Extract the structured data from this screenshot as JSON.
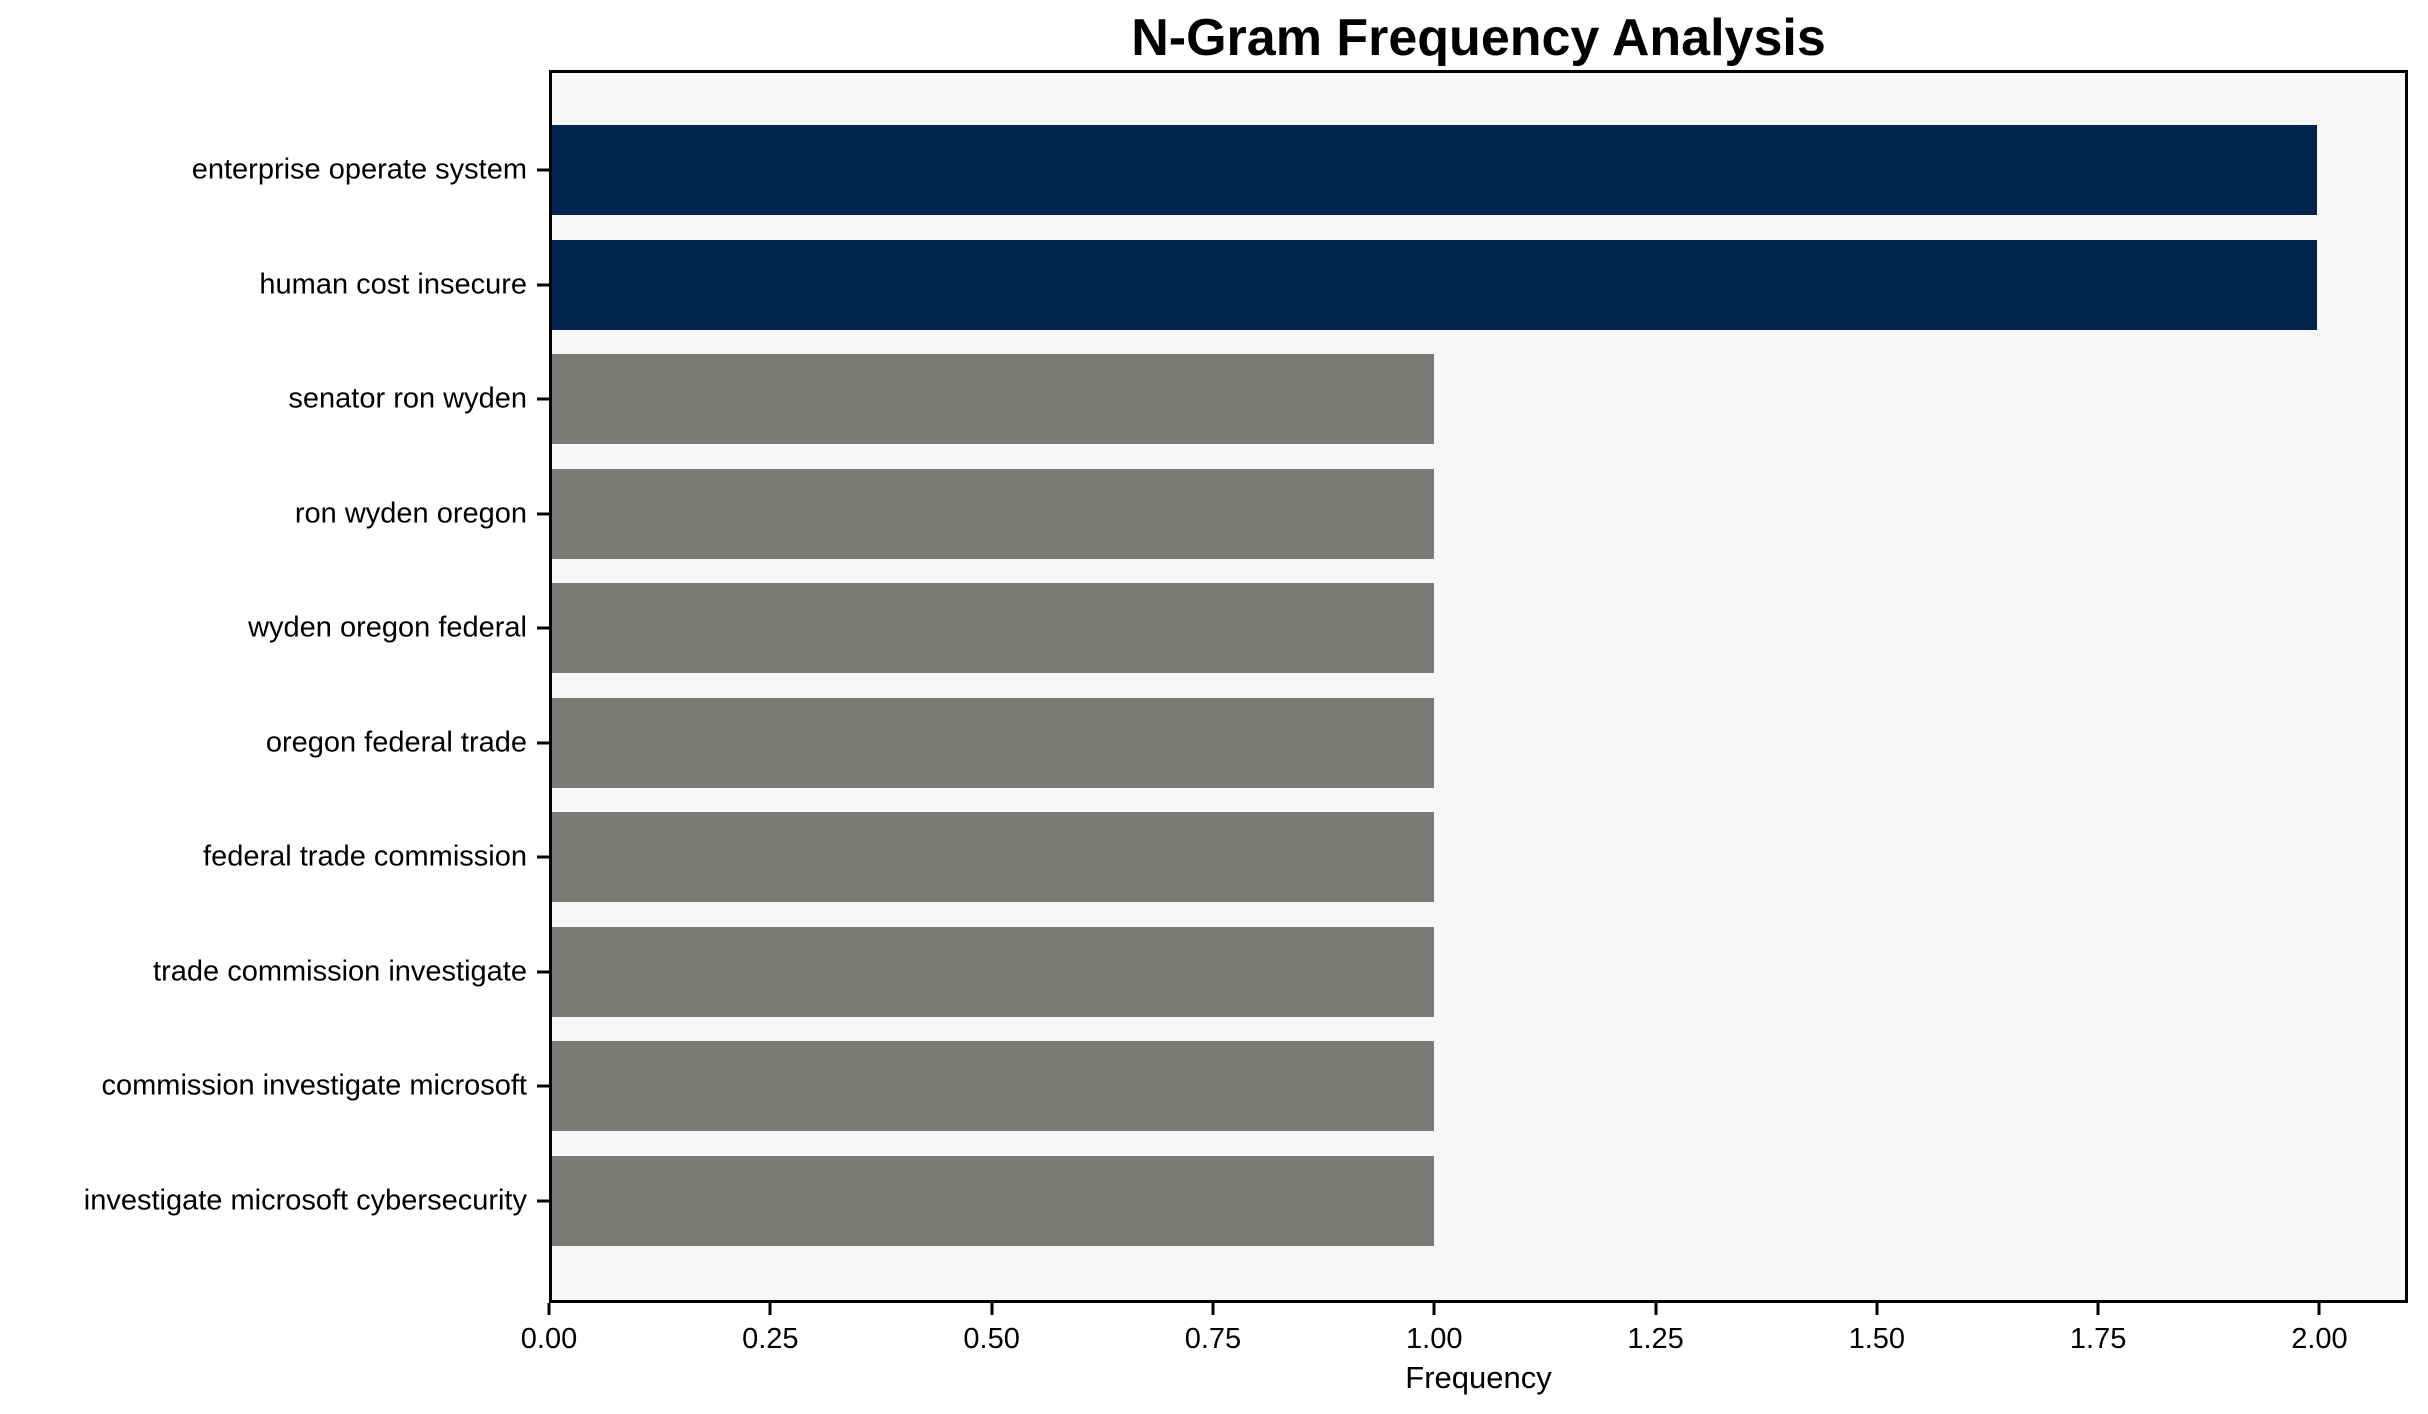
{
  "chart_data": {
    "type": "bar",
    "orientation": "horizontal",
    "title": "N-Gram Frequency Analysis",
    "xlabel": "Frequency",
    "ylabel": "",
    "categories": [
      "enterprise operate system",
      "human cost insecure",
      "senator ron wyden",
      "ron wyden oregon",
      "wyden oregon federal",
      "oregon federal trade",
      "federal trade commission",
      "trade commission investigate",
      "commission investigate microsoft",
      "investigate microsoft cybersecurity"
    ],
    "values": [
      2,
      2,
      1,
      1,
      1,
      1,
      1,
      1,
      1,
      1
    ],
    "bar_colors": [
      "#02234e",
      "#02234e",
      "#7b7b77",
      "#7b7b77",
      "#7b7b77",
      "#7b7b77",
      "#7b7b77",
      "#7b7b77",
      "#7b7b77",
      "#7b7b77"
    ],
    "xlim": [
      0,
      2.1
    ],
    "xticks": [
      0.0,
      0.25,
      0.5,
      0.75,
      1.0,
      1.25,
      1.5,
      1.75,
      2.0
    ],
    "xtick_labels": [
      "0.00",
      "0.25",
      "0.50",
      "0.75",
      "1.00",
      "1.25",
      "1.50",
      "1.75",
      "2.00"
    ],
    "grid": false,
    "legend_position": "none",
    "plot_background": "#f7f7f7",
    "figure_background": "#ffffff",
    "highlight_color": "#02234e",
    "default_color": "#7b7b77"
  }
}
